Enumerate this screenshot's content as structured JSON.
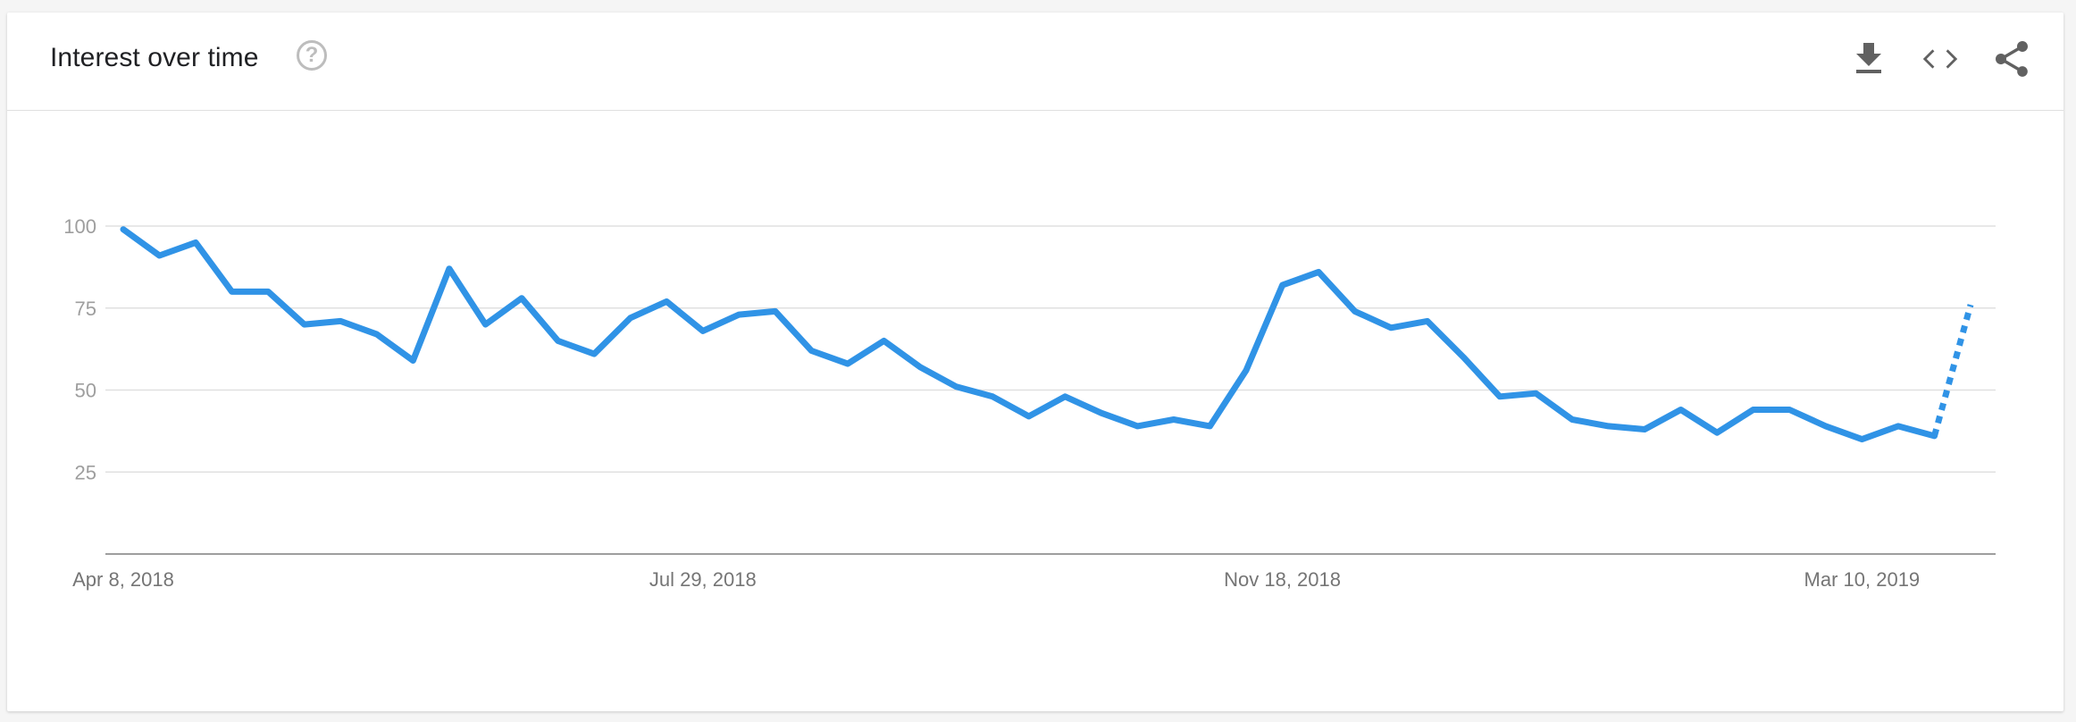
{
  "header": {
    "title": "Interest over time",
    "help_glyph": "?",
    "help_icon": "help-circle-icon",
    "actions": [
      {
        "name": "download-icon"
      },
      {
        "name": "embed-code-icon"
      },
      {
        "name": "share-icon"
      }
    ]
  },
  "colors": {
    "line": "#3093e6",
    "grid": "#e0e0e0",
    "axis": "#9e9e9e"
  },
  "chart_data": {
    "type": "line",
    "title": "",
    "xlabel": "",
    "ylabel": "",
    "ylim": [
      0,
      100
    ],
    "yticks": [
      25,
      50,
      75,
      100
    ],
    "grid": true,
    "x_tick_labels": [
      "Apr 8, 2018",
      "Jul 29, 2018",
      "Nov 18, 2018",
      "Mar 10, 2019"
    ],
    "x_tick_indices": [
      0,
      16,
      32,
      48
    ],
    "partial_from_index": 51,
    "series": [
      {
        "values": [
          99,
          91,
          95,
          80,
          80,
          70,
          71,
          67,
          59,
          87,
          70,
          78,
          65,
          61,
          72,
          77,
          68,
          73,
          74,
          62,
          58,
          65,
          57,
          51,
          48,
          42,
          48,
          43,
          39,
          41,
          39,
          56,
          82,
          86,
          74,
          69,
          71,
          60,
          48,
          49,
          41,
          39,
          38,
          44,
          37,
          44,
          44,
          39,
          35,
          39,
          36,
          76
        ]
      }
    ]
  }
}
